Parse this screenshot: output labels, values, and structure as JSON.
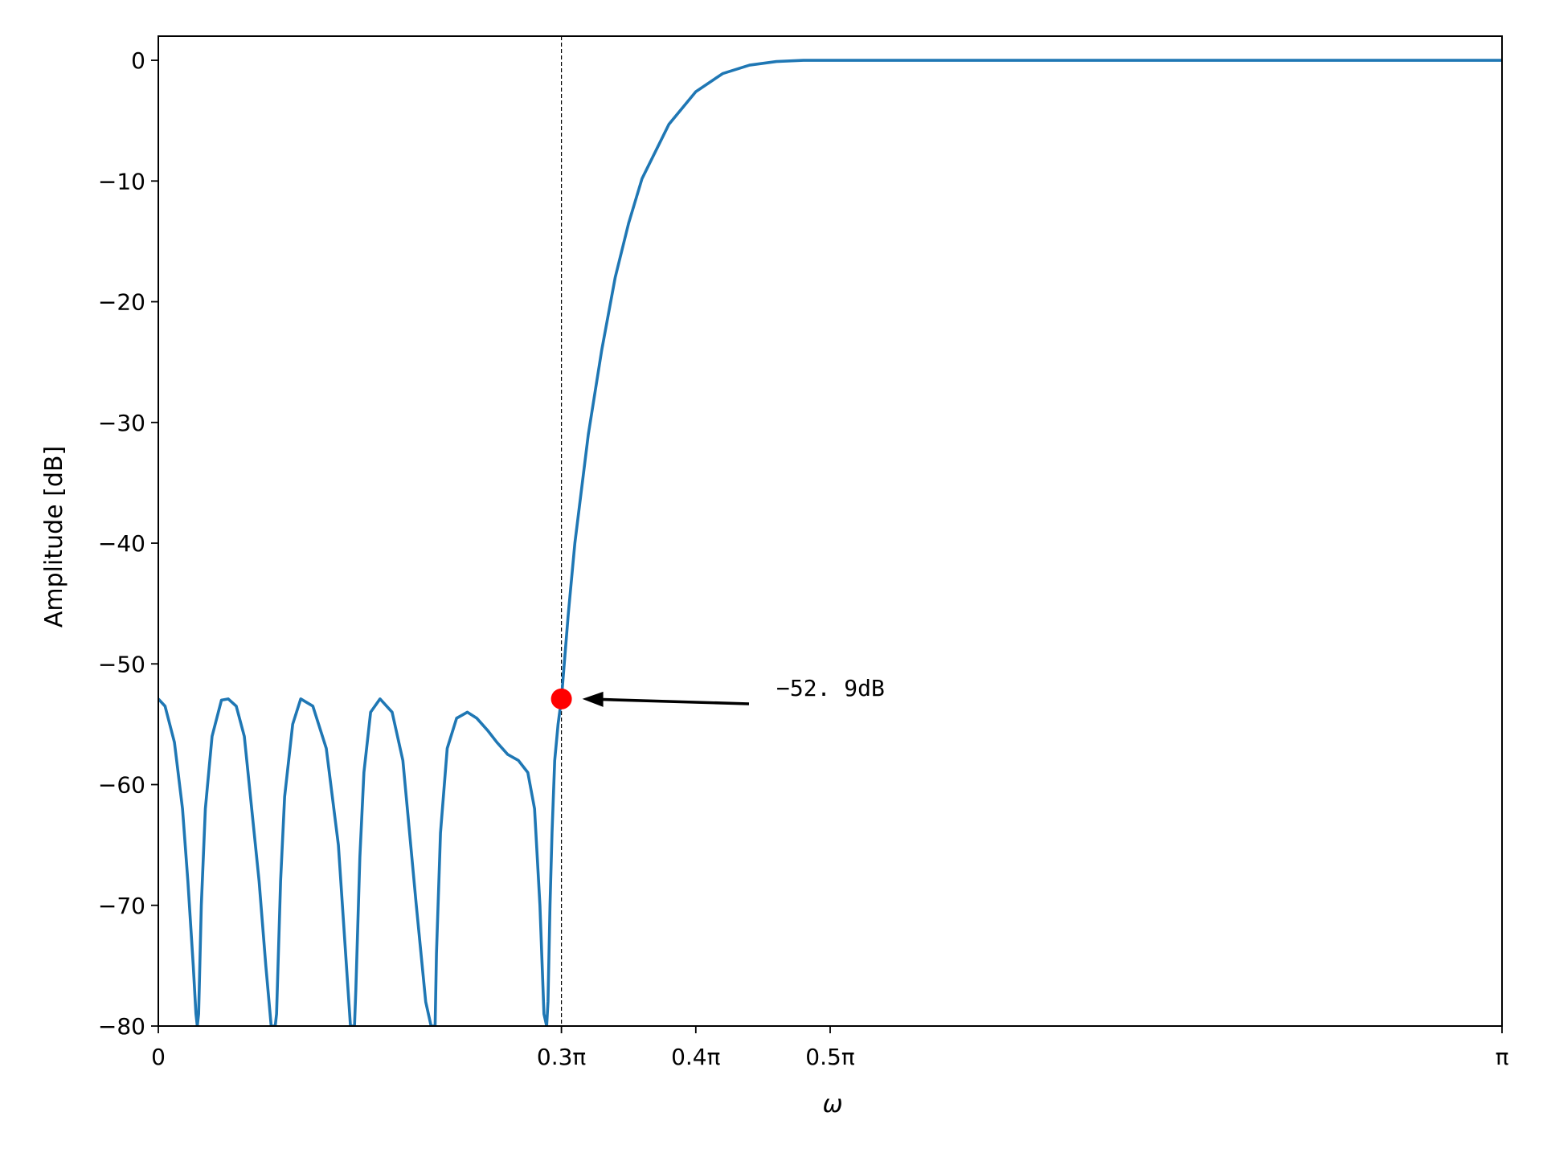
{
  "chart_data": {
    "type": "line",
    "xlabel": "ω",
    "ylabel": "Amplitude [dB]",
    "xlim": [
      0,
      1
    ],
    "ylim": [
      -80,
      2
    ],
    "x_unit": "ω/π",
    "grid": false,
    "x_ticks": [
      {
        "value": 0,
        "label": "0"
      },
      {
        "value": 0.3,
        "label": "0.3π"
      },
      {
        "value": 0.4,
        "label": "0.4π"
      },
      {
        "value": 0.5,
        "label": "0.5π"
      },
      {
        "value": 1,
        "label": "π"
      }
    ],
    "y_ticks": [
      {
        "value": 0,
        "label": "0"
      },
      {
        "value": -10,
        "label": "−10"
      },
      {
        "value": -20,
        "label": "−20"
      },
      {
        "value": -30,
        "label": "−30"
      },
      {
        "value": -40,
        "label": "−40"
      },
      {
        "value": -50,
        "label": "−50"
      },
      {
        "value": -60,
        "label": "−60"
      },
      {
        "value": -70,
        "label": "−70"
      },
      {
        "value": -80,
        "label": "−80"
      }
    ],
    "series": [
      {
        "color": "#1f77b4",
        "x": [
          0,
          0.005,
          0.012,
          0.018,
          0.022,
          0.026,
          0.028,
          0.029,
          0.03,
          0.032,
          0.035,
          0.04,
          0.047,
          0.052,
          0.058,
          0.064,
          0.075,
          0.08,
          0.084,
          0.086,
          0.087,
          0.088,
          0.091,
          0.094,
          0.1,
          0.106,
          0.115,
          0.125,
          0.134,
          0.14,
          0.143,
          0.145,
          0.146,
          0.147,
          0.15,
          0.153,
          0.158,
          0.165,
          0.174,
          0.182,
          0.192,
          0.199,
          0.203,
          0.205,
          0.206,
          0.207,
          0.21,
          0.215,
          0.222,
          0.23,
          0.237,
          0.245,
          0.252,
          0.26,
          0.268,
          0.275,
          0.28,
          0.284,
          0.287,
          0.289,
          0.29,
          0.2915,
          0.293,
          0.295,
          0.2975,
          0.3,
          0.305,
          0.31,
          0.32,
          0.33,
          0.34,
          0.35,
          0.36,
          0.38,
          0.4,
          0.42,
          0.44,
          0.46,
          0.48,
          0.5,
          0.52,
          0.55,
          0.6,
          0.7,
          0.8,
          0.9,
          1.0
        ],
        "y": [
          -52.9,
          -53.5,
          -56.5,
          -62,
          -68,
          -75,
          -79,
          -80,
          -79,
          -70,
          -62,
          -56,
          -53,
          -52.9,
          -53.5,
          -56,
          -68,
          -75,
          -80,
          -80,
          -80,
          -79,
          -68,
          -61,
          -55,
          -52.9,
          -53.5,
          -57,
          -65,
          -75,
          -80,
          -80,
          -80,
          -77,
          -66,
          -59,
          -54,
          -52.9,
          -54,
          -58,
          -70,
          -78,
          -80,
          -80,
          -80,
          -74,
          -64,
          -57,
          -54.5,
          -54,
          -54.5,
          -55.5,
          -56.5,
          -57.5,
          -58,
          -59,
          -62,
          -70,
          -79,
          -80,
          -78,
          -70,
          -64,
          -58,
          -55,
          -52.9,
          -46,
          -40,
          -31,
          -24,
          -18,
          -13.5,
          -9.8,
          -5.3,
          -2.6,
          -1.1,
          -0.4,
          -0.1,
          0.0,
          0.0,
          0.0,
          0.0,
          0.0,
          0.0,
          0.0,
          0.0,
          0.0
        ]
      }
    ],
    "reference_line": {
      "x": 0.3,
      "style": "dashed"
    },
    "marker": {
      "x": 0.3,
      "y": -52.9,
      "color": "#ff0000"
    },
    "annotation": {
      "text": "−52. 9dB"
    }
  }
}
